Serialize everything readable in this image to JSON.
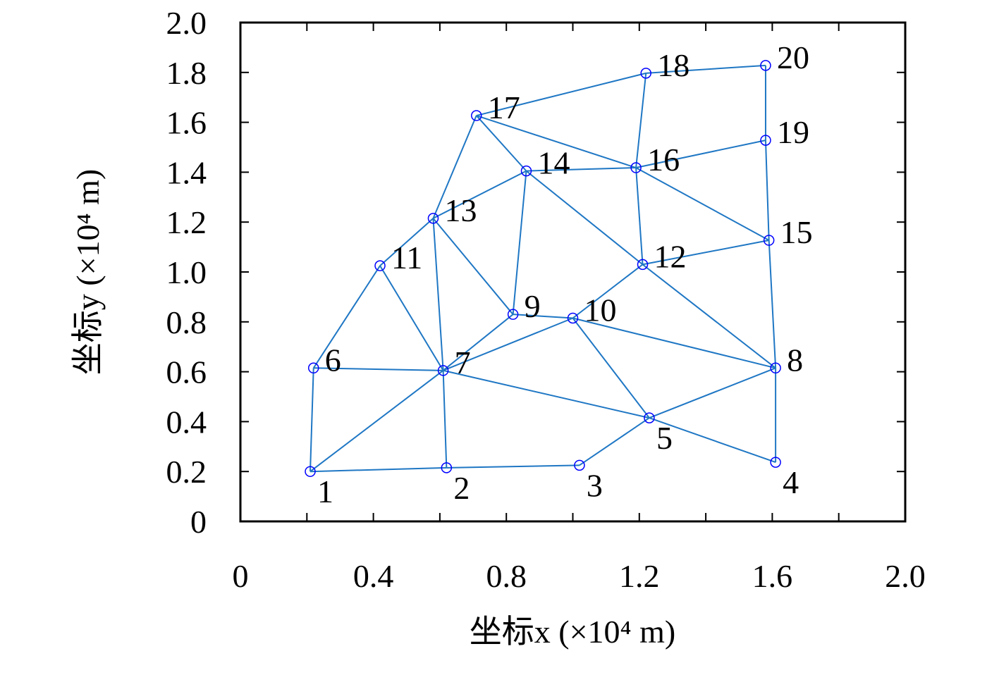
{
  "chart_data": {
    "type": "network",
    "xlabel": "坐标x (×10⁴ m)",
    "ylabel": "坐标y (×10⁴ m)",
    "xlim": [
      0,
      2
    ],
    "ylim": [
      0,
      2
    ],
    "xticks": [
      0,
      0.4,
      0.8,
      {
        "value": 1.2,
        "label": "1.2"
      },
      1.6,
      {
        "value": 2,
        "label": "2.0"
      }
    ],
    "xminorticks": [
      0.2,
      0.6,
      1,
      1.4,
      1.8
    ],
    "yticks": [
      0,
      0.2,
      0.4,
      0.6,
      0.8,
      {
        "value": 1,
        "label": "1.0"
      },
      1.2,
      1.4,
      1.6,
      1.8,
      {
        "value": 2,
        "label": "2.0"
      }
    ],
    "color": "#1f77c4",
    "marker_color": "#0000ff",
    "labels": [
      "1",
      "2",
      "3",
      "4",
      "5",
      "6",
      "7",
      "8",
      "9",
      "10",
      "11",
      "12",
      "13",
      "14",
      "15",
      "16",
      "17",
      "18",
      "19",
      "20"
    ],
    "x": [
      0.21,
      0.62,
      1.02,
      1.61,
      1.23,
      0.22,
      0.61,
      1.61,
      0.82,
      1.0,
      0.42,
      1.21,
      0.58,
      0.86,
      1.59,
      1.19,
      0.71,
      1.22,
      1.58,
      1.58
    ],
    "y": [
      0.2,
      0.215,
      0.225,
      0.237,
      0.415,
      0.615,
      0.605,
      0.615,
      0.83,
      0.815,
      1.025,
      1.03,
      1.215,
      1.405,
      1.127,
      1.418,
      1.627,
      1.797,
      1.528,
      1.828
    ],
    "edges": [
      [
        0,
        1
      ],
      [
        1,
        2
      ],
      [
        2,
        4
      ],
      [
        4,
        3
      ],
      [
        3,
        7
      ],
      [
        4,
        7
      ],
      [
        0,
        5
      ],
      [
        0,
        6
      ],
      [
        5,
        6
      ],
      [
        5,
        10
      ],
      [
        1,
        6
      ],
      [
        6,
        4
      ],
      [
        6,
        8
      ],
      [
        6,
        9
      ],
      [
        6,
        10
      ],
      [
        6,
        12
      ],
      [
        8,
        9
      ],
      [
        9,
        4
      ],
      [
        9,
        7
      ],
      [
        9,
        11
      ],
      [
        11,
        7
      ],
      [
        11,
        14
      ],
      [
        14,
        7
      ],
      [
        14,
        15
      ],
      [
        18,
        14
      ],
      [
        19,
        18
      ],
      [
        11,
        15
      ],
      [
        11,
        13
      ],
      [
        13,
        8
      ],
      [
        12,
        8
      ],
      [
        12,
        13
      ],
      [
        12,
        10
      ],
      [
        12,
        16
      ],
      [
        16,
        13
      ],
      [
        16,
        15
      ],
      [
        16,
        17
      ],
      [
        17,
        15
      ],
      [
        17,
        19
      ],
      [
        15,
        13
      ],
      [
        15,
        18
      ]
    ]
  }
}
